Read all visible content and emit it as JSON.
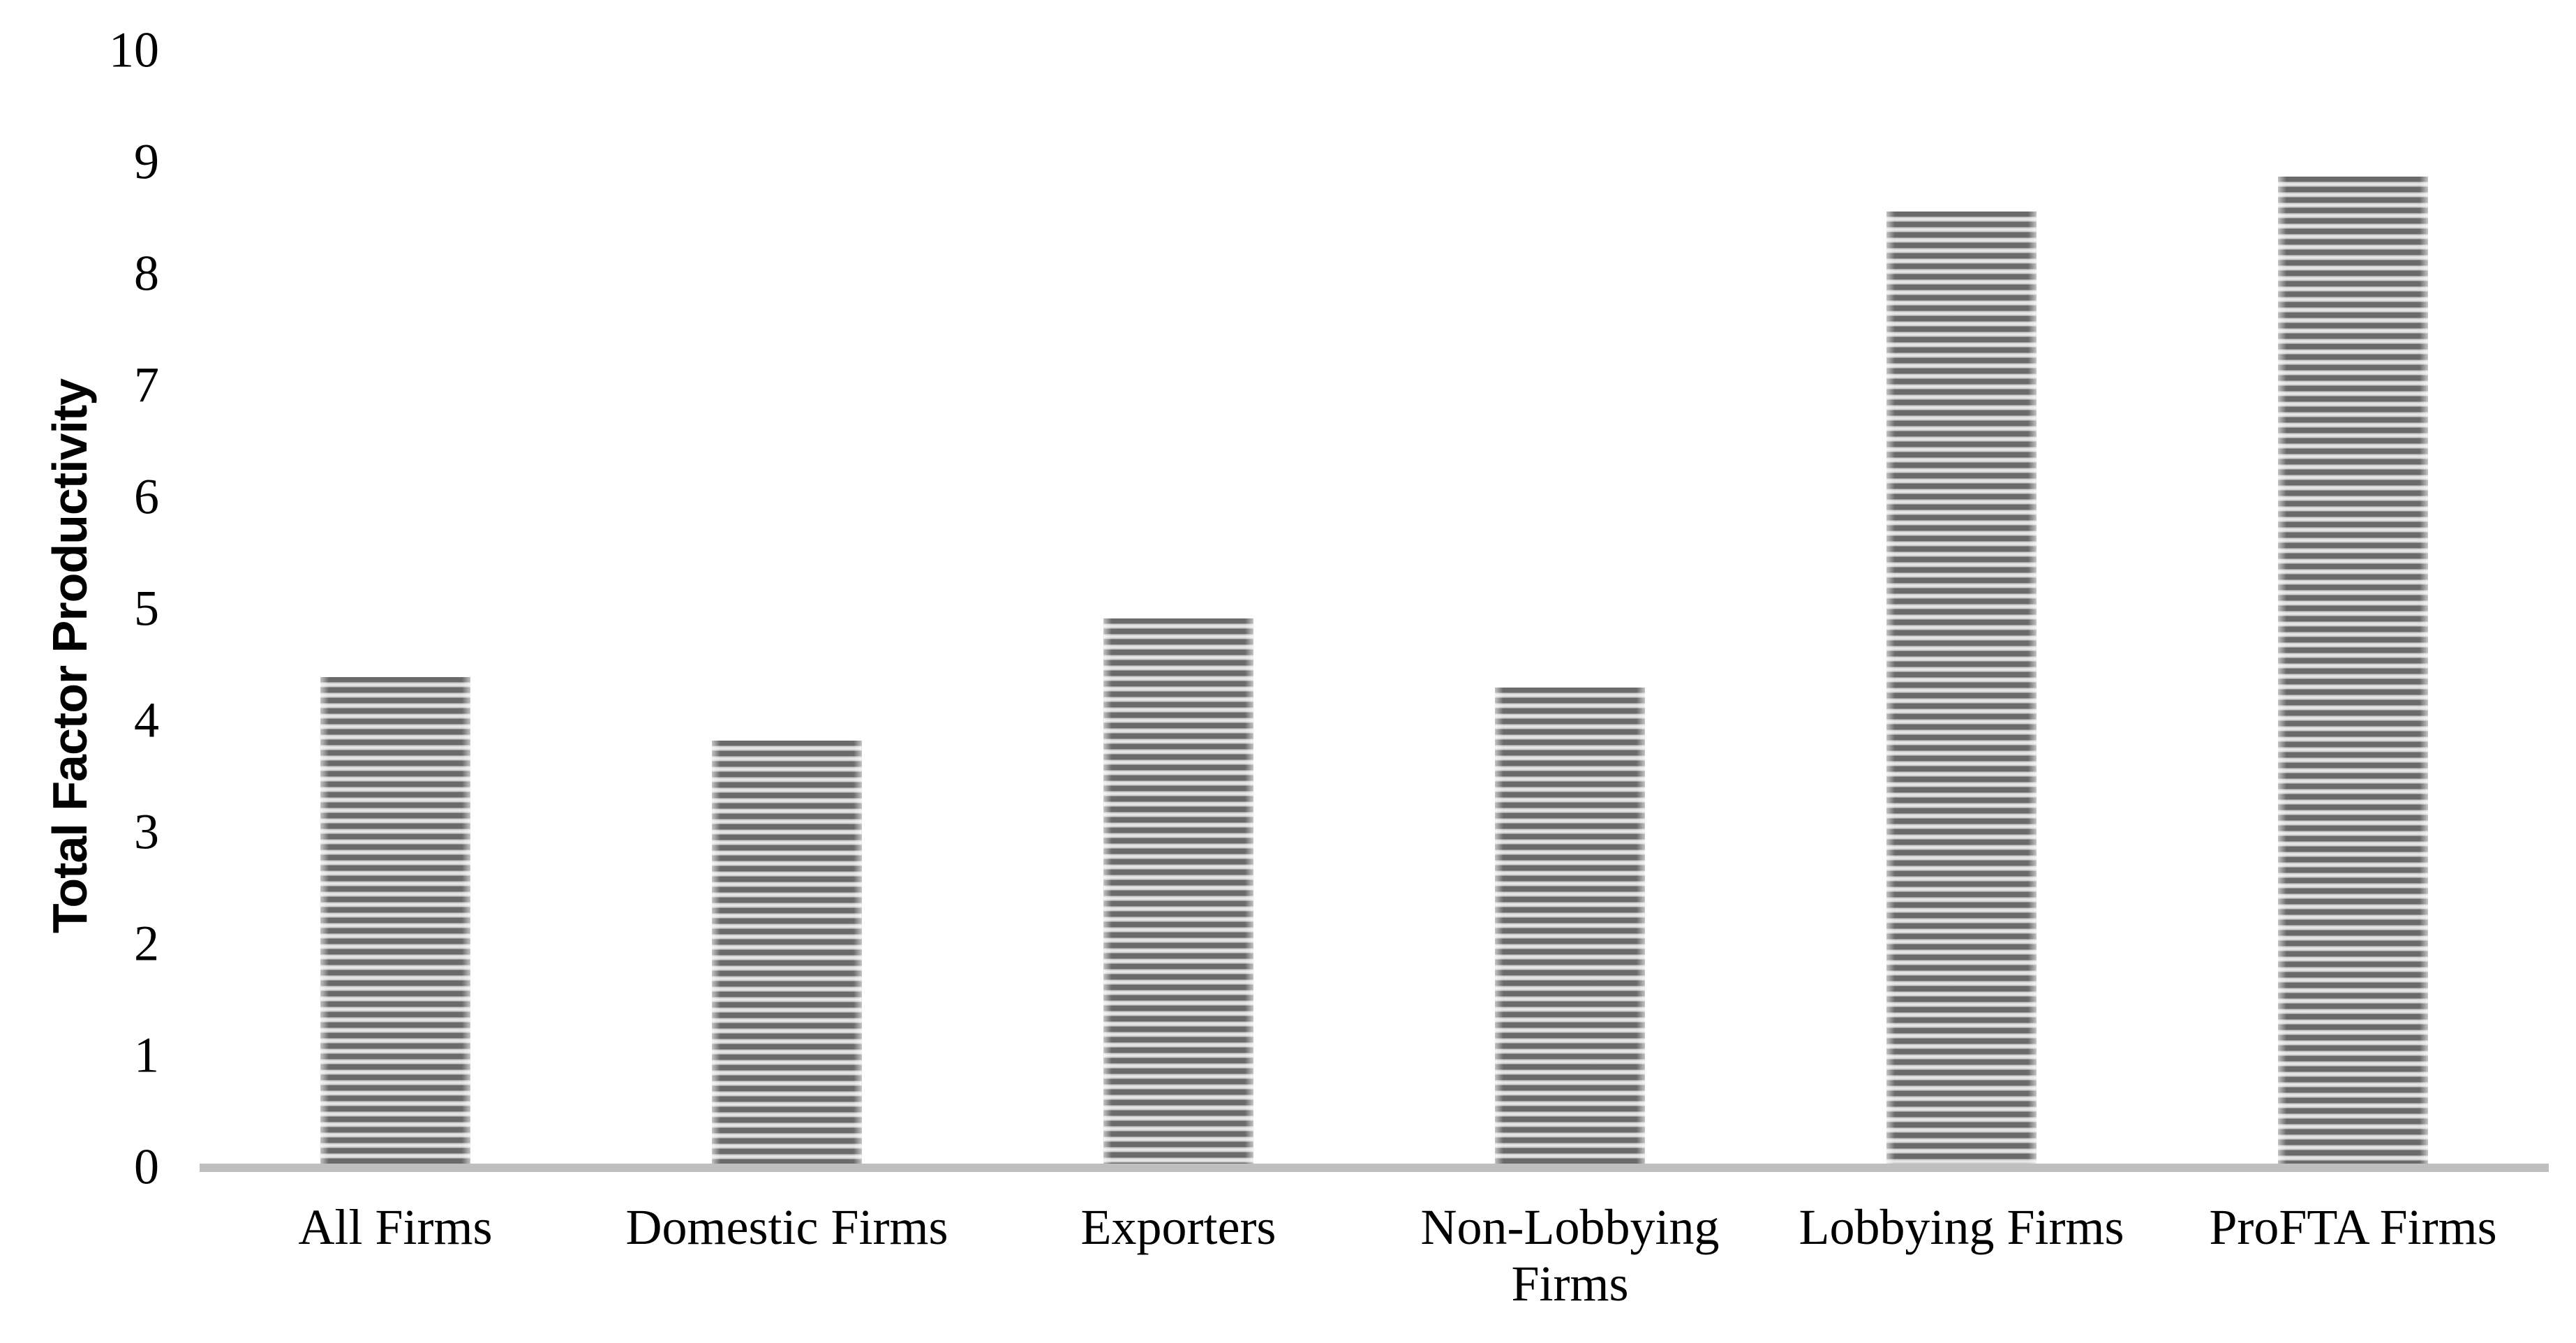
{
  "chart_data": {
    "type": "bar",
    "title": "",
    "xlabel": "",
    "ylabel": "Total Factor Productivity",
    "categories": [
      "All Firms",
      "Domestic Firms",
      "Exporters",
      "Non-Lobbying Firms",
      "Lobbying Firms",
      "ProFTA Firms"
    ],
    "values": [
      4.37,
      3.8,
      4.9,
      4.28,
      8.56,
      8.87
    ],
    "y_ticks": [
      0,
      1,
      2,
      3,
      4,
      5,
      6,
      7,
      8,
      9,
      10
    ],
    "ylim": [
      0,
      10
    ],
    "grid": false,
    "legend": false,
    "bar_fill_pattern": "horizontal-stripes",
    "colors": {
      "stripe_dark": "#6a6a6a",
      "stripe_light": "#d9d9d9",
      "stripe_highlight": "#ececec",
      "axis_line": "#bfbfbf",
      "text": "#000000",
      "background": "#ffffff"
    }
  }
}
